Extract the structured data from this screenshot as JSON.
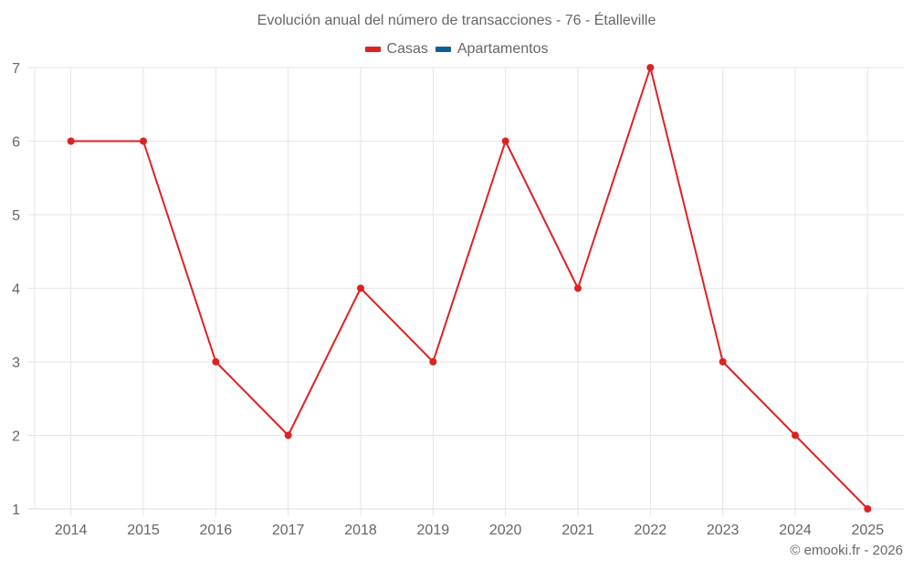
{
  "chart_data": {
    "type": "line",
    "title": "Evolución anual del número de transacciones - 76 - Étalleville",
    "xlabel": "",
    "ylabel": "",
    "categories": [
      "2014",
      "2015",
      "2016",
      "2017",
      "2018",
      "2019",
      "2020",
      "2021",
      "2022",
      "2023",
      "2024",
      "2025"
    ],
    "series": [
      {
        "name": "Casas",
        "color": "#dd2222",
        "values": [
          6,
          6,
          3,
          2,
          4,
          3,
          6,
          4,
          7,
          3,
          2,
          1
        ]
      },
      {
        "name": "Apartamentos",
        "color": "#0e5f96",
        "values": []
      }
    ],
    "ylim": [
      1,
      7
    ],
    "yticks": [
      1,
      2,
      3,
      4,
      5,
      6,
      7
    ],
    "grid": true,
    "legend_position": "top"
  },
  "header": {
    "title": "Evolución anual del número de transacciones - 76 - Étalleville"
  },
  "legend": {
    "items": [
      {
        "label": "Casas",
        "color": "#dd2222"
      },
      {
        "label": "Apartamentos",
        "color": "#0e5f96"
      }
    ]
  },
  "footer": {
    "credit": "© emooki.fr - 2026"
  }
}
